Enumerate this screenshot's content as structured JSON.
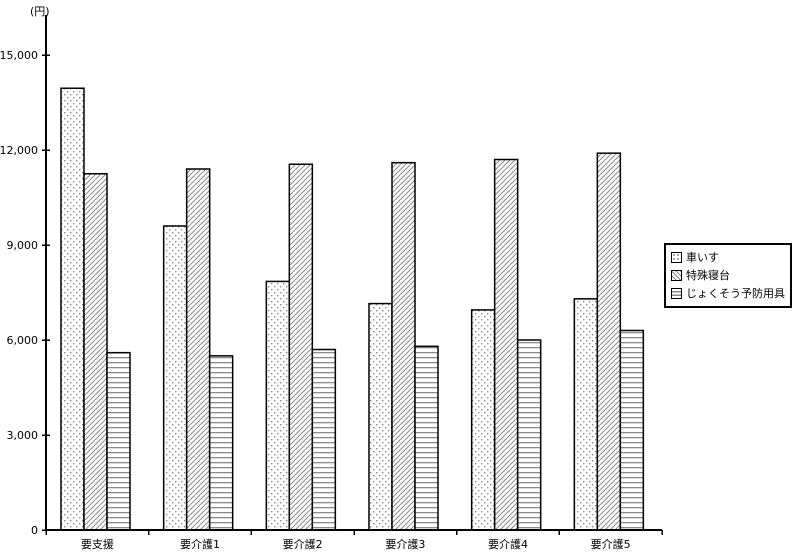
{
  "chart_data": {
    "type": "bar",
    "title": "",
    "xlabel": "",
    "ylabel": "(円)",
    "categories": [
      "要支援",
      "要介護1",
      "要介護2",
      "要介護3",
      "要介護4",
      "要介護5"
    ],
    "series": [
      {
        "name": "車いす",
        "pattern": "dots",
        "values": [
          13950,
          9600,
          7850,
          7150,
          6950,
          7300
        ]
      },
      {
        "name": "特殊寝台",
        "pattern": "diagonal",
        "values": [
          11250,
          11400,
          11550,
          11600,
          11700,
          11900
        ]
      },
      {
        "name": "じょくそう予防用具",
        "pattern": "horizontal",
        "values": [
          5600,
          5500,
          5700,
          5800,
          6000,
          6300
        ]
      }
    ],
    "ylim": [
      0,
      16250
    ],
    "yticks": [
      0,
      3000,
      6000,
      9000,
      12000,
      15000
    ],
    "ytick_labels": [
      "0",
      "3,000",
      "6,000",
      "9,000",
      "12,000",
      "15,000"
    ],
    "legend_position": "right",
    "grid": false,
    "colors": {
      "axis": "#000000",
      "bar_border": "#000000",
      "pattern_gray": "#8a8a8a",
      "background": "#ffffff"
    }
  }
}
